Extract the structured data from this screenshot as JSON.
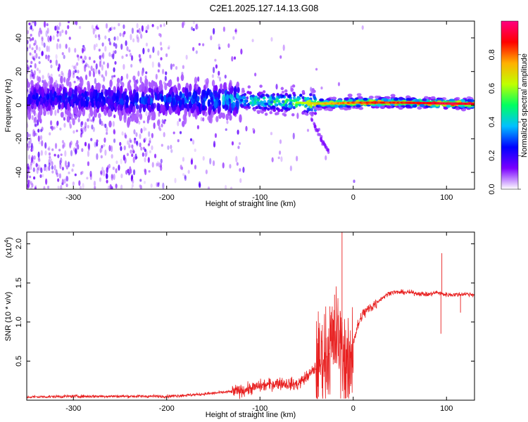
{
  "title": "C2E1.2025.127.14.13.G08",
  "chart_data": [
    {
      "type": "heatmap",
      "name": "spectrogram",
      "xlabel": "Height of straight line (km)",
      "ylabel": "Frequency (Hz)",
      "xlim": [
        -350,
        130
      ],
      "ylim": [
        -50,
        50
      ],
      "xticks": [
        -300,
        -200,
        -100,
        0,
        100
      ],
      "xtick_labels": [
        "-300",
        "-200",
        "-100",
        "0",
        "100"
      ],
      "yticks": [
        -40,
        -20,
        0,
        20,
        40
      ],
      "ytick_labels": [
        "-40",
        "-20",
        "0",
        "20",
        "40"
      ],
      "colorbar": {
        "label": "Normalized spectral amplitude",
        "range": [
          0,
          1
        ],
        "ticks": [
          0.0,
          0.2,
          0.4,
          0.6,
          0.8
        ],
        "tick_labels": [
          "0.0",
          "0.2",
          "0.4",
          "0.6",
          "0.8"
        ],
        "colors": [
          "#ffffff",
          "#7a00ff",
          "#0000ff",
          "#00c0ff",
          "#00ff60",
          "#c0ff00",
          "#ffb000",
          "#ff0000",
          "#ff0080"
        ]
      },
      "ridge": {
        "x": [
          -350,
          -300,
          -250,
          -200,
          -150,
          -120,
          -100,
          -80,
          -60,
          -40,
          -20,
          0,
          20,
          50,
          80,
          100,
          130
        ],
        "freq": [
          4,
          4,
          3,
          3,
          3,
          3,
          2.5,
          2,
          1.5,
          1,
          1,
          1.5,
          1.5,
          1.5,
          1.2,
          1,
          0.8
        ],
        "amplitude": [
          0.25,
          0.28,
          0.3,
          0.32,
          0.4,
          0.45,
          0.5,
          0.55,
          0.6,
          0.7,
          0.75,
          0.8,
          0.85,
          0.85,
          0.9,
          0.95,
          0.9
        ]
      }
    },
    {
      "type": "line",
      "name": "snr",
      "xlabel": "Height of straight line (km)",
      "ylabel": "SNR (10 * v/v)",
      "scale_label": "(x10",
      "scale_exp": "4",
      "scale_close": ")",
      "xlim": [
        -350,
        130
      ],
      "ylim": [
        0,
        2.15
      ],
      "xticks": [
        -300,
        -200,
        -100,
        0,
        100
      ],
      "xtick_labels": [
        "-300",
        "-200",
        "-100",
        "0",
        "100"
      ],
      "yticks": [
        0.5,
        1.0,
        1.5,
        2.0
      ],
      "ytick_labels": [
        "0.5",
        "1.0",
        "1.5",
        "2.0"
      ],
      "color": "#e82020",
      "x": [
        -350,
        -300,
        -250,
        -200,
        -170,
        -150,
        -120,
        -100,
        -80,
        -60,
        -45,
        -35,
        -25,
        -18,
        -10,
        -5,
        0,
        5,
        10,
        20,
        30,
        40,
        60,
        80,
        90,
        95,
        100,
        110,
        120,
        130
      ],
      "y": [
        0.04,
        0.05,
        0.05,
        0.05,
        0.07,
        0.09,
        0.12,
        0.18,
        0.22,
        0.2,
        0.35,
        0.5,
        0.65,
        0.8,
        0.6,
        0.3,
        0.75,
        0.95,
        1.1,
        1.2,
        1.3,
        1.38,
        1.38,
        1.35,
        1.38,
        1.36,
        1.35,
        1.35,
        1.36,
        1.35
      ],
      "spikes": [
        {
          "x": -12,
          "y": 2.15
        },
        {
          "x": -20,
          "y": 1.35
        },
        {
          "x": -25,
          "y": 1.2
        },
        {
          "x": 95,
          "y": 1.88
        },
        {
          "x": 94,
          "y": 0.85
        },
        {
          "x": 115,
          "y": 1.12
        }
      ]
    }
  ]
}
